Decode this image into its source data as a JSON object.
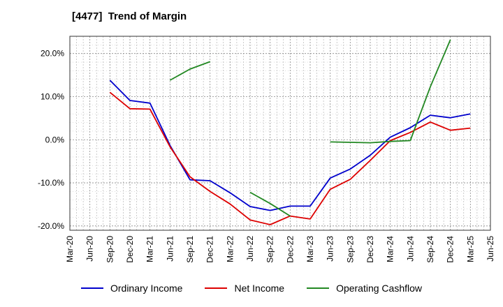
{
  "title": "[4477]  Trend of Margin",
  "chart_data": {
    "type": "line",
    "x": [
      "Mar-20",
      "Jun-20",
      "Sep-20",
      "Dec-20",
      "Mar-21",
      "Jun-21",
      "Sep-21",
      "Dec-21",
      "Mar-22",
      "Jun-22",
      "Sep-22",
      "Dec-22",
      "Mar-23",
      "Jun-23",
      "Sep-23",
      "Dec-23",
      "Mar-24",
      "Jun-24",
      "Sep-24",
      "Dec-24",
      "Mar-25",
      "Jun-25"
    ],
    "ylim": [
      -21,
      24
    ],
    "yticks": [
      -20,
      -10,
      0,
      10,
      20
    ],
    "ytick_labels": [
      "-20.0%",
      "-10.0%",
      "0.0%",
      "10.0%",
      "20.0%"
    ],
    "grid": true,
    "legend_position": "bottom",
    "series": [
      {
        "name": "Ordinary Income",
        "color": "#0000cc",
        "values": [
          null,
          null,
          13.8,
          9.1,
          8.5,
          -1.3,
          -9.3,
          -9.5,
          -12.3,
          -15.5,
          -16.4,
          -15.4,
          -15.4,
          -8.9,
          -6.8,
          -3.6,
          0.6,
          2.8,
          5.7,
          5.1,
          6.0,
          null
        ]
      },
      {
        "name": "Net Income",
        "color": "#dd0000",
        "values": [
          null,
          null,
          11.0,
          7.2,
          7.1,
          -1.6,
          -8.6,
          -12.0,
          -14.9,
          -18.6,
          -19.7,
          -17.7,
          -18.4,
          -11.5,
          -9.2,
          -4.8,
          -0.2,
          1.7,
          4.1,
          2.2,
          2.7,
          null
        ]
      },
      {
        "name": "Operating Cashflow",
        "color": "#228822",
        "values": [
          null,
          null,
          null,
          null,
          null,
          13.8,
          16.4,
          18.1,
          null,
          -12.2,
          -14.8,
          -17.7,
          null,
          -0.5,
          -0.6,
          -0.7,
          -0.4,
          -0.2,
          12.3,
          23.2,
          null,
          null
        ]
      }
    ]
  }
}
